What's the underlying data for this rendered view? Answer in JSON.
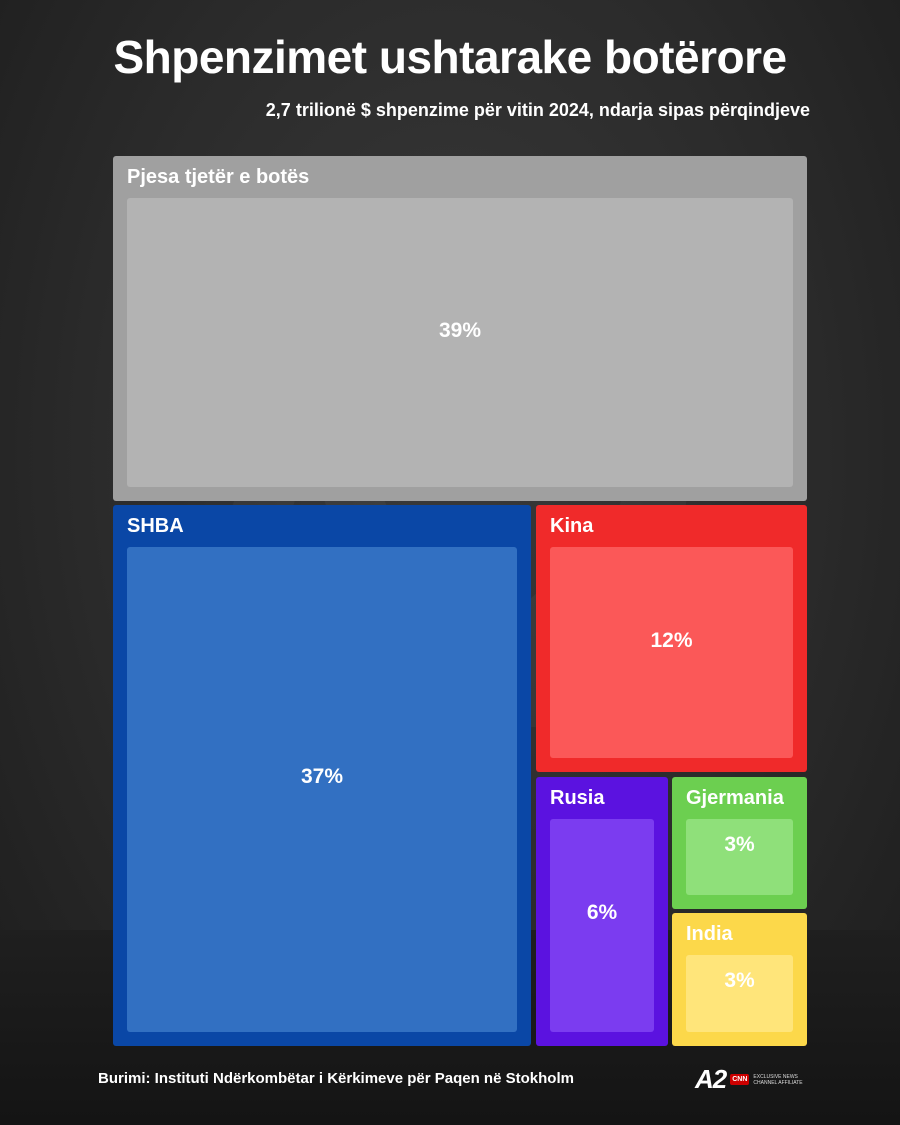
{
  "title": "Shpenzimet ushtarake botërore",
  "subtitle": "2,7 trilionë $ shpenzime për vitin 2024, ndarja sipas përqindjeve",
  "source": "Burimi: Instituti Ndërkombëtar i Kërkimeve për Paqen në Stokholm",
  "logo": {
    "brand": "A2",
    "network": "CNN",
    "affiliate": "EXCLUSIVE NEWS CHANNEL AFFILIATE"
  },
  "chart_data": {
    "type": "treemap",
    "total_label": "2,7 trilionë $",
    "series": [
      {
        "name": "Pjesa tjetër e botës",
        "value": 39,
        "label": "39%",
        "color": "#b3b3b3",
        "border": "#a0a0a0"
      },
      {
        "name": "SHBA",
        "value": 37,
        "label": "37%",
        "color": "#3270c2",
        "border": "#0a47a6"
      },
      {
        "name": "Kina",
        "value": 12,
        "label": "12%",
        "color": "#fb5858",
        "border": "#f02a2a"
      },
      {
        "name": "Rusia",
        "value": 6,
        "label": "6%",
        "color": "#7b3cf0",
        "border": "#5b12e0"
      },
      {
        "name": "Gjermania",
        "value": 3,
        "label": "3%",
        "color": "#8fe07a",
        "border": "#6ccf50"
      },
      {
        "name": "India",
        "value": 3,
        "label": "3%",
        "color": "#ffe57a",
        "border": "#fcd84a"
      }
    ]
  }
}
